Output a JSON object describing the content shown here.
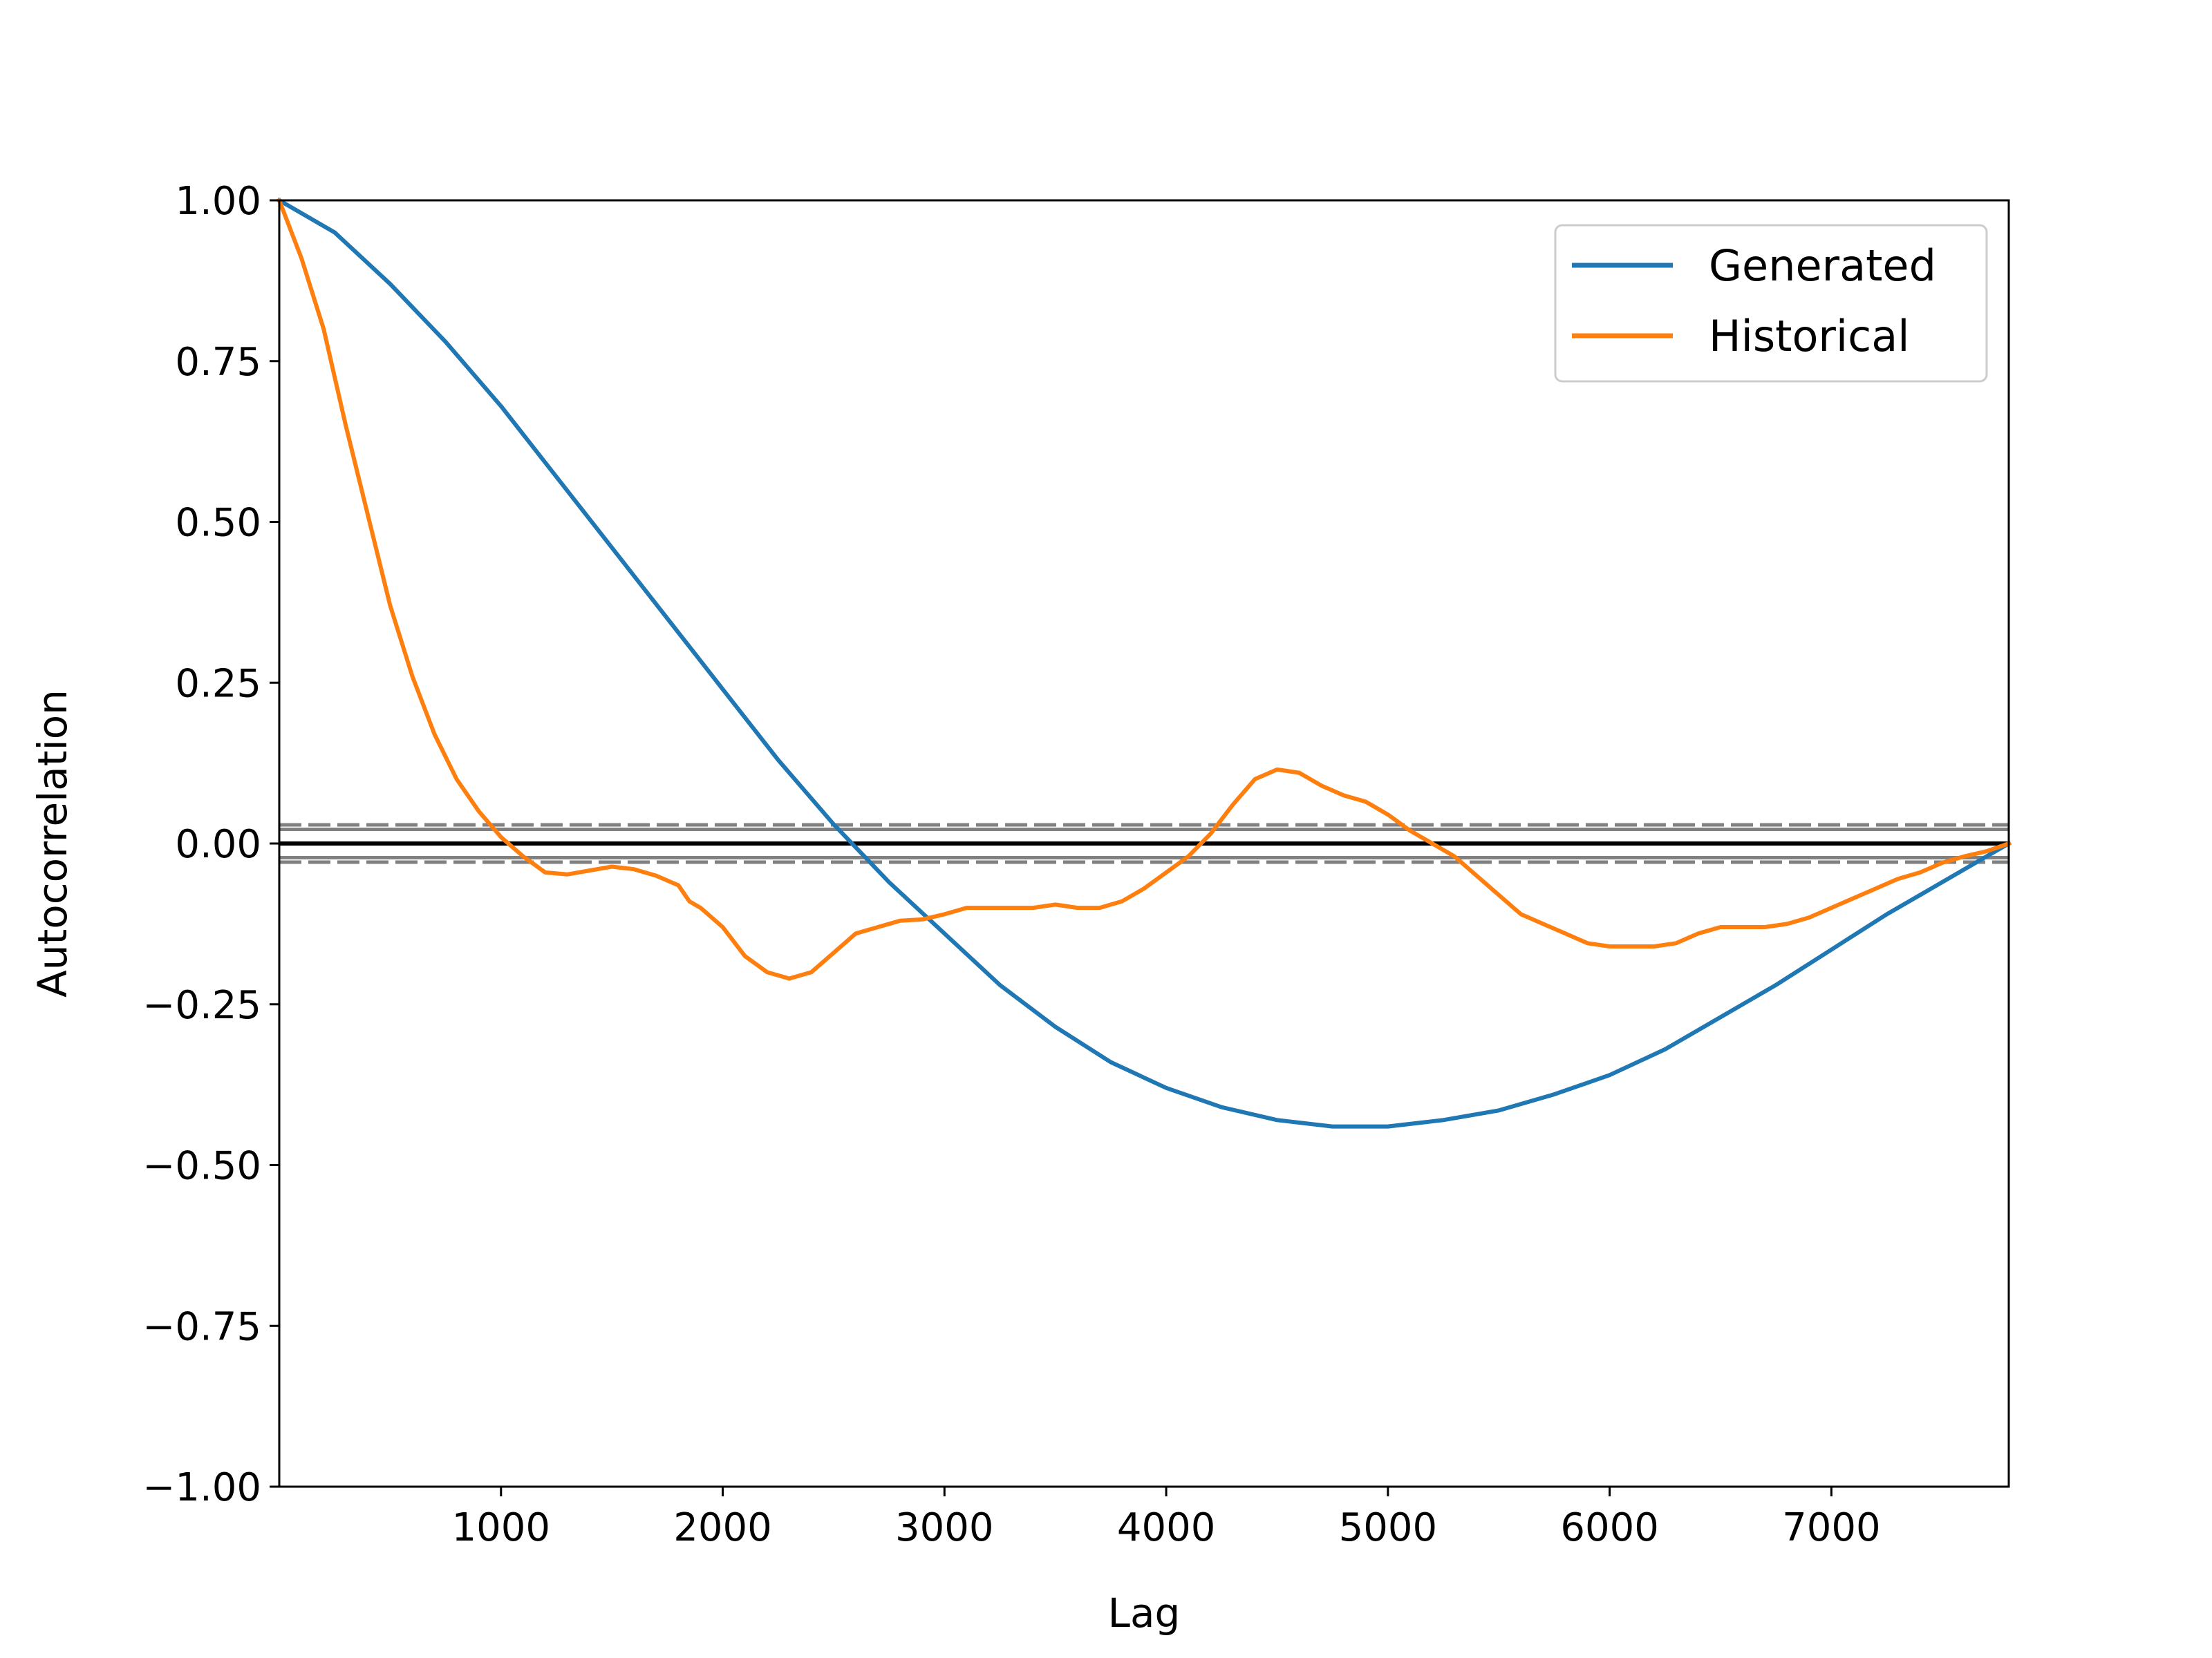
{
  "chart_data": {
    "type": "line",
    "title": "",
    "xlabel": "Lag",
    "ylabel": "Autocorrelation",
    "xlim": [
      0,
      7800
    ],
    "ylim": [
      -1.0,
      1.0
    ],
    "x_ticks": [
      1000,
      2000,
      3000,
      4000,
      5000,
      6000,
      7000
    ],
    "x_tick_labels": [
      "1000",
      "2000",
      "3000",
      "4000",
      "5000",
      "6000",
      "7000"
    ],
    "y_ticks": [
      1.0,
      0.75,
      0.5,
      0.25,
      0.0,
      -0.25,
      -0.5,
      -0.75,
      -1.0
    ],
    "y_tick_labels": [
      "1.00",
      "0.75",
      "0.50",
      "0.25",
      "0.00",
      "−0.25",
      "−0.50",
      "−0.75",
      "−1.00"
    ],
    "grid": false,
    "legend_position": "top-right",
    "confidence_bands": {
      "z95": 0.022,
      "z99": 0.029,
      "color": "#808080",
      "zero_line_color": "#000000"
    },
    "series": [
      {
        "name": "Generated",
        "color": "#1f77b4",
        "x": [
          0,
          250,
          500,
          750,
          1000,
          1250,
          1500,
          1750,
          2000,
          2250,
          2500,
          2750,
          3000,
          3250,
          3500,
          3750,
          4000,
          4250,
          4500,
          4750,
          5000,
          5250,
          5500,
          5750,
          6000,
          6250,
          6500,
          6750,
          7000,
          7250,
          7500,
          7800
        ],
        "y": [
          1.0,
          0.95,
          0.87,
          0.78,
          0.68,
          0.57,
          0.46,
          0.35,
          0.24,
          0.13,
          0.03,
          -0.06,
          -0.14,
          -0.22,
          -0.285,
          -0.34,
          -0.38,
          -0.41,
          -0.43,
          -0.44,
          -0.44,
          -0.43,
          -0.415,
          -0.39,
          -0.36,
          -0.32,
          -0.27,
          -0.22,
          -0.165,
          -0.11,
          -0.06,
          0.0
        ]
      },
      {
        "name": "Historical",
        "color": "#ff7f0e",
        "x": [
          0,
          100,
          200,
          300,
          400,
          500,
          600,
          700,
          800,
          900,
          1000,
          1100,
          1200,
          1300,
          1400,
          1500,
          1600,
          1700,
          1800,
          1850,
          1900,
          2000,
          2100,
          2200,
          2300,
          2400,
          2500,
          2600,
          2700,
          2800,
          2900,
          3000,
          3100,
          3200,
          3300,
          3400,
          3500,
          3600,
          3700,
          3800,
          3900,
          4000,
          4100,
          4200,
          4300,
          4400,
          4500,
          4600,
          4700,
          4800,
          4900,
          5000,
          5100,
          5200,
          5300,
          5400,
          5500,
          5600,
          5700,
          5800,
          5900,
          6000,
          6100,
          6200,
          6300,
          6400,
          6500,
          6600,
          6700,
          6800,
          6900,
          7000,
          7100,
          7200,
          7300,
          7400,
          7500,
          7600,
          7700,
          7800
        ],
        "y": [
          1.0,
          0.91,
          0.8,
          0.65,
          0.51,
          0.37,
          0.26,
          0.17,
          0.1,
          0.05,
          0.01,
          -0.02,
          -0.045,
          -0.048,
          -0.042,
          -0.036,
          -0.04,
          -0.05,
          -0.065,
          -0.09,
          -0.1,
          -0.13,
          -0.175,
          -0.2,
          -0.21,
          -0.2,
          -0.17,
          -0.14,
          -0.13,
          -0.12,
          -0.118,
          -0.11,
          -0.1,
          -0.1,
          -0.1,
          -0.1,
          -0.095,
          -0.1,
          -0.1,
          -0.09,
          -0.07,
          -0.045,
          -0.02,
          0.015,
          0.06,
          0.1,
          0.115,
          0.11,
          0.09,
          0.075,
          0.065,
          0.045,
          0.02,
          0.0,
          -0.02,
          -0.05,
          -0.08,
          -0.11,
          -0.125,
          -0.14,
          -0.155,
          -0.16,
          -0.16,
          -0.16,
          -0.155,
          -0.14,
          -0.13,
          -0.13,
          -0.13,
          -0.125,
          -0.115,
          -0.1,
          -0.085,
          -0.07,
          -0.055,
          -0.045,
          -0.03,
          -0.02,
          -0.012,
          0.0
        ]
      }
    ]
  }
}
